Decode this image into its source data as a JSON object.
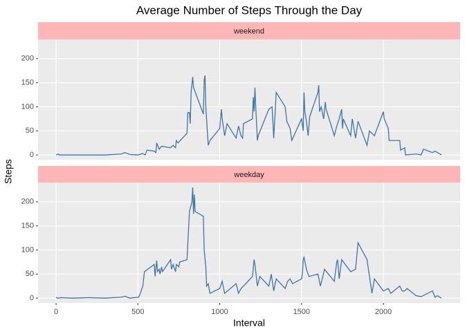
{
  "chart_data": {
    "type": "line",
    "title": "Average Number of Steps Through the Day",
    "x_label": "Interval",
    "y_label": "Steps",
    "xlim": [
      -110,
      2469
    ],
    "xticks": [
      0,
      500,
      1000,
      1500,
      2000
    ],
    "ylim": [
      -10,
      240
    ],
    "yticks": [
      0,
      50,
      100,
      150,
      200
    ],
    "grid": true,
    "series": [
      {
        "name": "weekend",
        "color": "#3c74aa",
        "x": [
          0,
          15,
          20,
          100,
          200,
          300,
          400,
          420,
          450,
          500,
          530,
          545,
          555,
          600,
          610,
          615,
          630,
          645,
          700,
          715,
          730,
          735,
          745,
          800,
          805,
          815,
          820,
          825,
          835,
          840,
          900,
          905,
          910,
          915,
          925,
          930,
          940,
          1000,
          1010,
          1015,
          1030,
          1045,
          1100,
          1115,
          1130,
          1140,
          1145,
          1200,
          1205,
          1210,
          1215,
          1220,
          1230,
          1235,
          1300,
          1320,
          1330,
          1345,
          1400,
          1410,
          1430,
          1440,
          1500,
          1510,
          1515,
          1520,
          1530,
          1540,
          1550,
          1600,
          1605,
          1610,
          1620,
          1635,
          1645,
          1650,
          1700,
          1715,
          1730,
          1745,
          1750,
          1755,
          1800,
          1810,
          1830,
          1845,
          1900,
          1915,
          1945,
          2000,
          2005,
          2030,
          2035,
          2100,
          2105,
          2130,
          2135,
          2200,
          2230,
          2245,
          2300,
          2315,
          2330,
          2355
        ],
        "values": [
          0,
          2,
          0,
          0,
          0,
          0,
          2,
          5,
          1,
          0,
          3,
          0,
          10,
          8,
          5,
          25,
          12,
          18,
          15,
          20,
          15,
          30,
          25,
          45,
          88,
          88,
          65,
          130,
          162,
          140,
          85,
          155,
          165,
          100,
          45,
          20,
          30,
          55,
          95,
          75,
          40,
          65,
          35,
          60,
          40,
          35,
          65,
          75,
          120,
          90,
          140,
          100,
          30,
          40,
          95,
          100,
          35,
          130,
          100,
          70,
          55,
          30,
          75,
          50,
          130,
          90,
          70,
          40,
          80,
          130,
          145,
          90,
          100,
          75,
          110,
          95,
          40,
          60,
          75,
          95,
          55,
          75,
          40,
          75,
          35,
          70,
          20,
          50,
          40,
          90,
          75,
          55,
          30,
          30,
          10,
          15,
          0,
          2,
          0,
          12,
          5,
          8,
          5,
          0
        ]
      },
      {
        "name": "weekday",
        "color": "#3c74aa",
        "x": [
          0,
          10,
          30,
          100,
          200,
          300,
          400,
          420,
          450,
          505,
          515,
          530,
          540,
          600,
          605,
          615,
          620,
          630,
          635,
          645,
          650,
          700,
          705,
          715,
          730,
          735,
          750,
          755,
          800,
          815,
          830,
          835,
          840,
          845,
          850,
          900,
          905,
          915,
          920,
          930,
          940,
          1000,
          1015,
          1030,
          1100,
          1115,
          1130,
          1145,
          1200,
          1210,
          1215,
          1230,
          1245,
          1300,
          1315,
          1330,
          1345,
          1400,
          1415,
          1430,
          1445,
          1500,
          1505,
          1510,
          1515,
          1530,
          1545,
          1600,
          1615,
          1630,
          1640,
          1700,
          1715,
          1720,
          1730,
          1745,
          1800,
          1830,
          1845,
          1900,
          1915,
          1930,
          1945,
          2000,
          2030,
          2045,
          2100,
          2115,
          2130,
          2145,
          2200,
          2230,
          2300,
          2315,
          2330,
          2355
        ],
        "values": [
          2,
          0,
          1,
          0,
          1,
          0,
          2,
          4,
          0,
          2,
          10,
          25,
          55,
          70,
          45,
          78,
          55,
          60,
          50,
          65,
          55,
          80,
          60,
          70,
          55,
          70,
          65,
          75,
          80,
          180,
          200,
          230,
          175,
          215,
          180,
          170,
          100,
          65,
          25,
          30,
          10,
          20,
          35,
          10,
          30,
          10,
          20,
          25,
          45,
          80,
          70,
          25,
          45,
          25,
          50,
          15,
          40,
          20,
          35,
          40,
          30,
          40,
          50,
          80,
          85,
          60,
          45,
          50,
          25,
          45,
          60,
          35,
          75,
          80,
          40,
          80,
          55,
          60,
          115,
          80,
          45,
          10,
          40,
          15,
          20,
          10,
          25,
          15,
          15,
          20,
          5,
          3,
          15,
          2,
          5,
          0
        ]
      }
    ]
  }
}
